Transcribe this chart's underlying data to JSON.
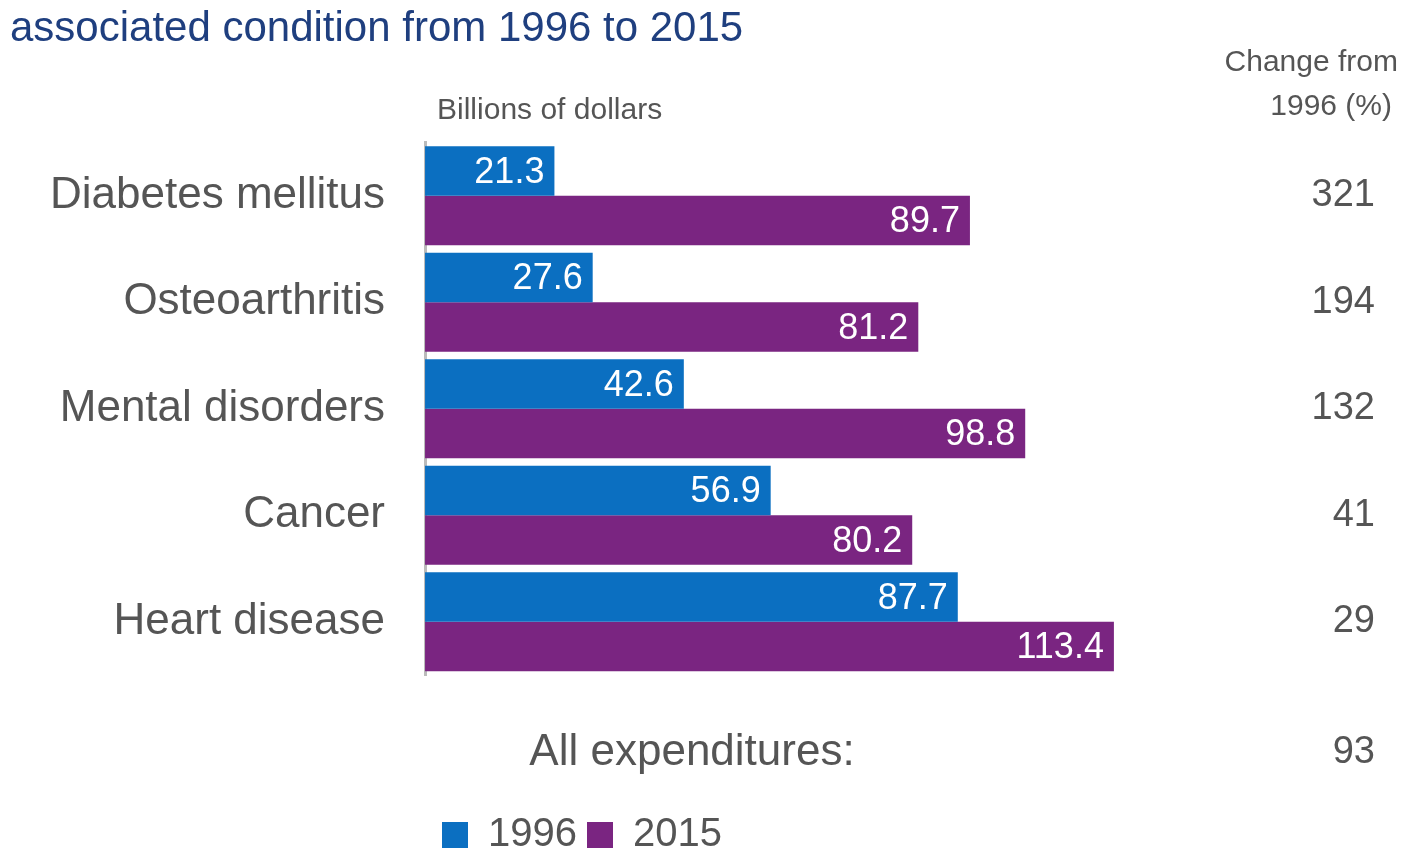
{
  "chart_data": {
    "type": "bar",
    "orientation": "horizontal",
    "title": "associated condition from 1996 to 2015",
    "categories": [
      "Diabetes mellitus",
      "Osteoarthritis",
      "Mental disorders",
      "Cancer",
      "Heart disease"
    ],
    "series": [
      {
        "name": "1996",
        "color": "#0b6fc1",
        "values": [
          21.3,
          27.6,
          42.6,
          56.9,
          87.7
        ]
      },
      {
        "name": "2015",
        "color": "#7a2581",
        "values": [
          89.7,
          81.2,
          98.8,
          80.2,
          113.4
        ]
      }
    ],
    "tick_labels": "y",
    "legend": "bottom",
    "data_labels": true,
    "annotations": [
      "Billions of dollars",
      "Change from 1996 (%)",
      "321",
      "194",
      "132",
      "41",
      "29",
      "All expenditures:",
      "93"
    ]
  }
}
